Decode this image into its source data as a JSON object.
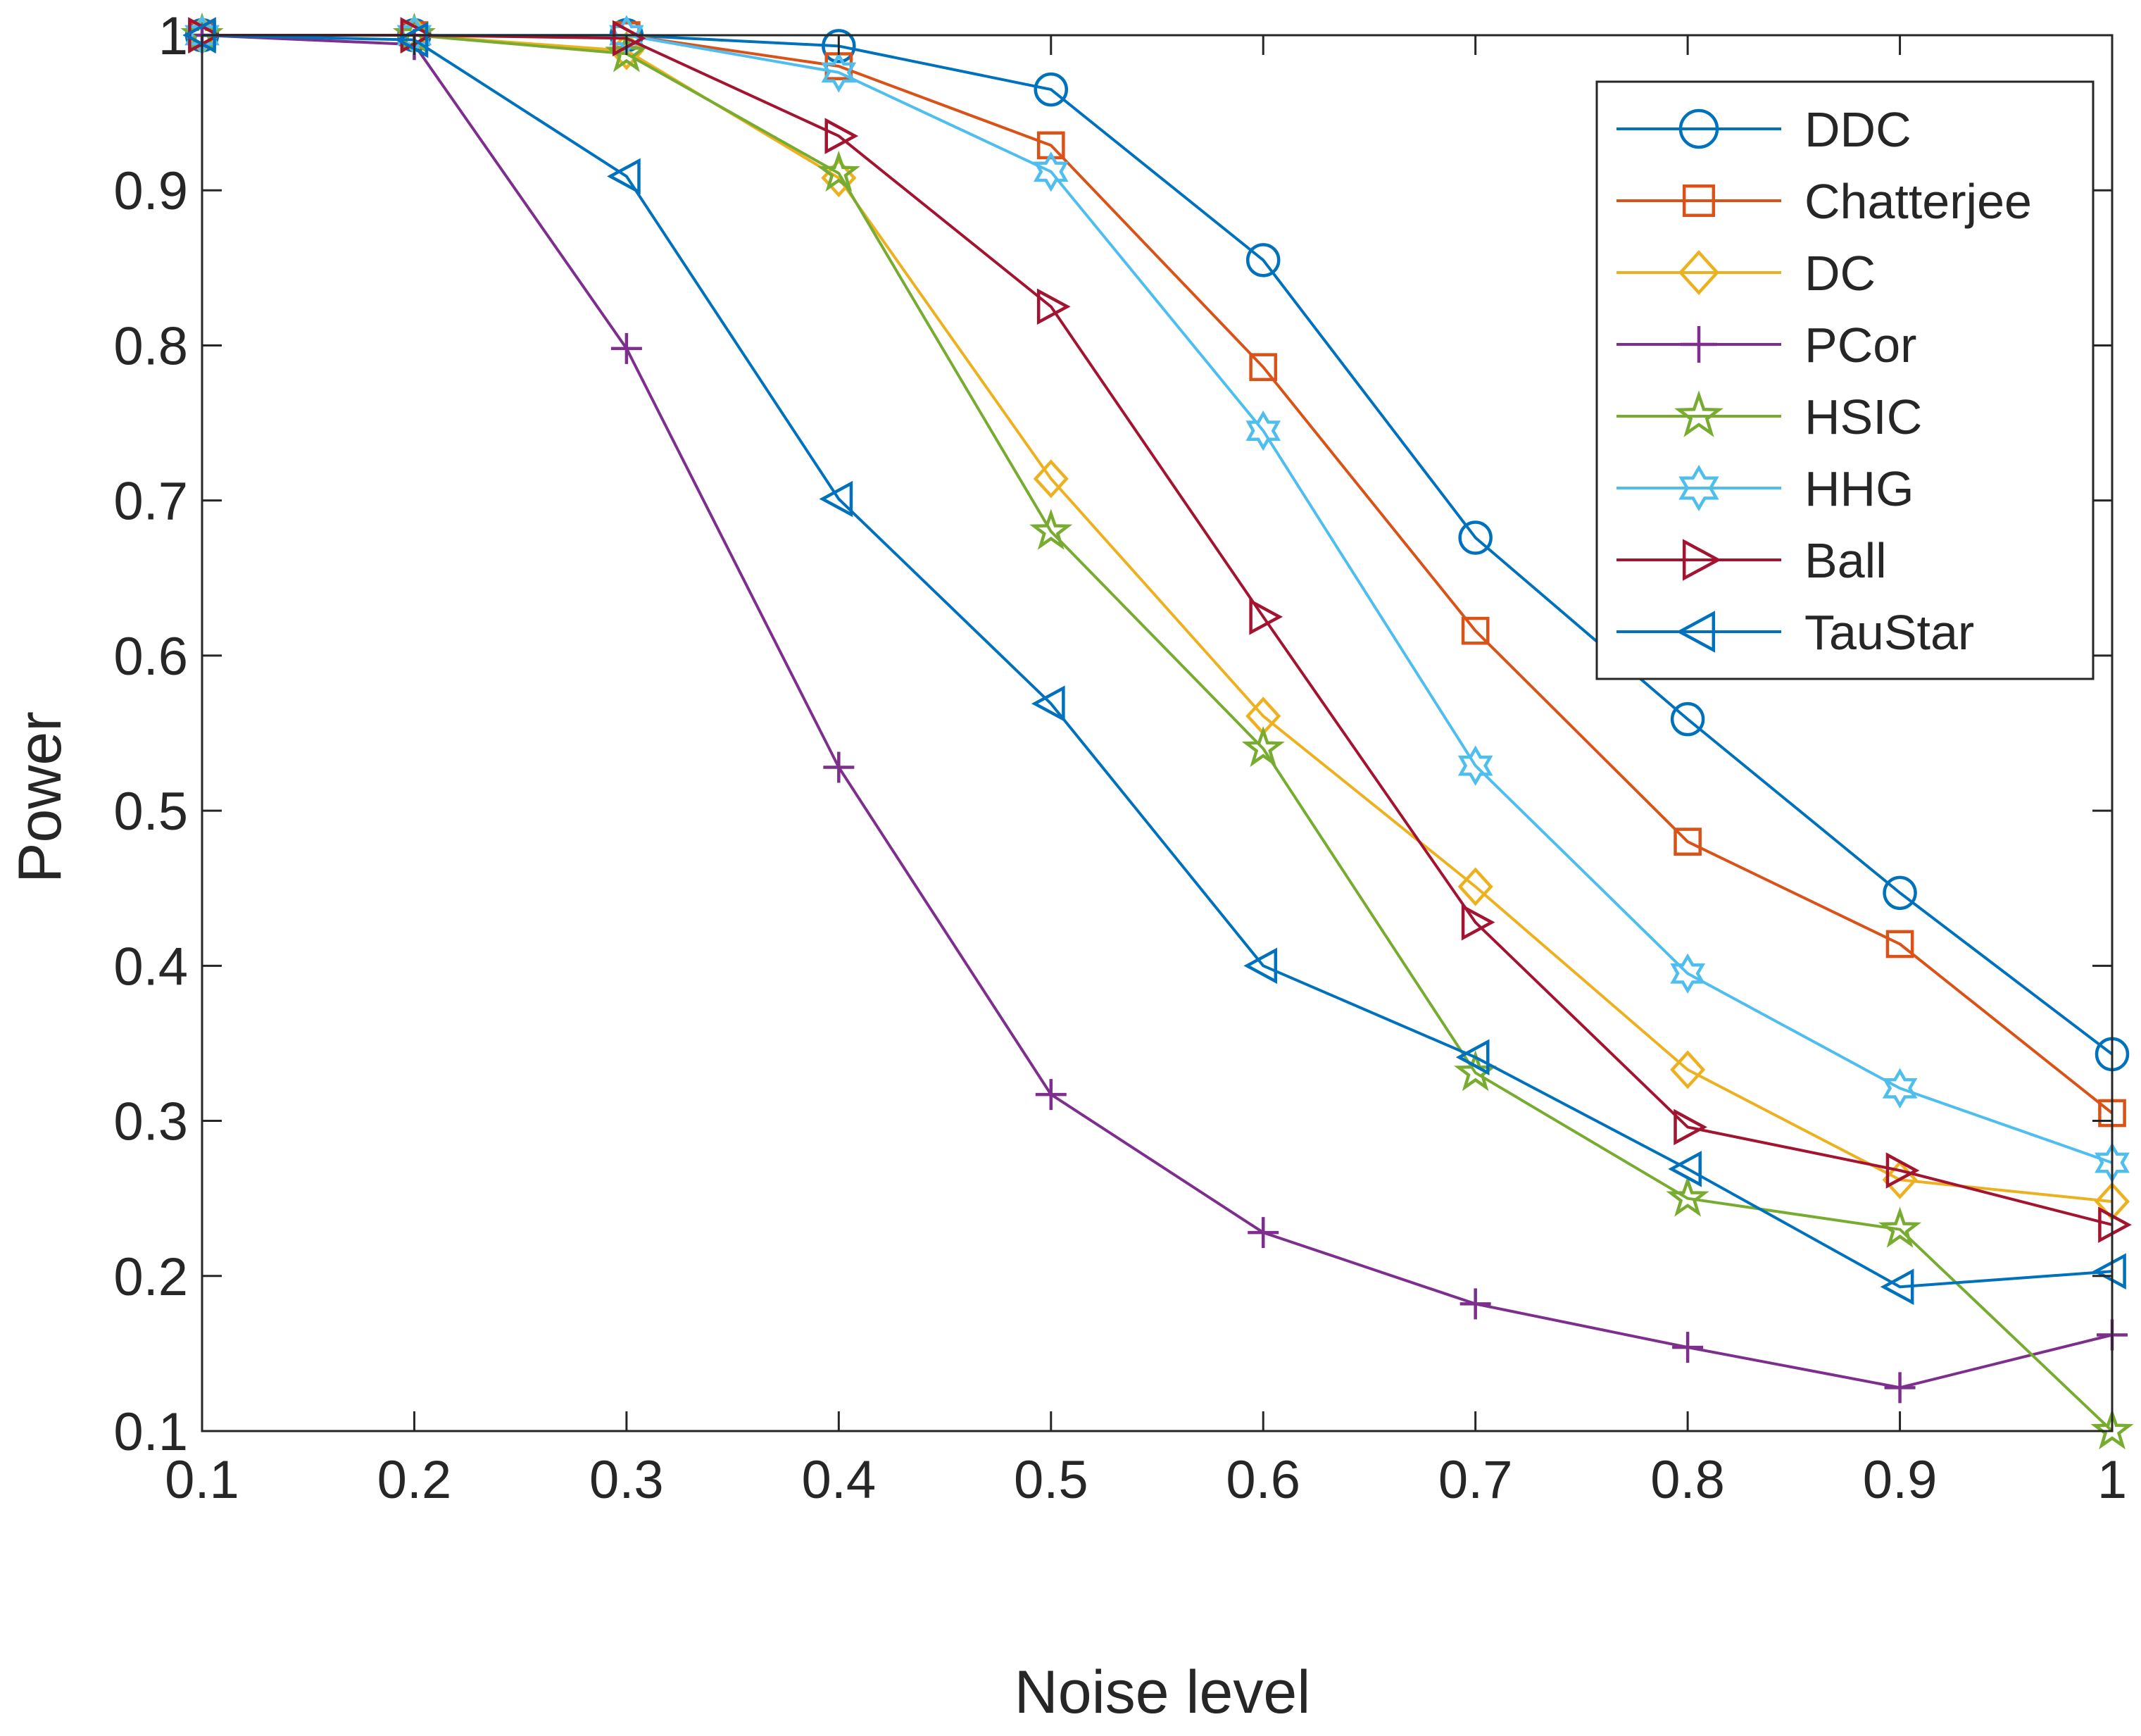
{
  "chart_data": {
    "type": "line",
    "title": "",
    "xlabel": "Noise level",
    "ylabel": "Power",
    "xlim": [
      0.1,
      1
    ],
    "ylim": [
      0.1,
      1
    ],
    "grid": false,
    "legend_position": "top-right",
    "x": [
      0.1,
      0.2,
      0.3,
      0.4,
      0.5,
      0.6,
      0.7,
      0.8,
      0.9,
      1.0
    ],
    "x_tick_labels": [
      "0.1",
      "0.2",
      "0.3",
      "0.4",
      "0.5",
      "0.6",
      "0.7",
      "0.8",
      "0.9",
      "1"
    ],
    "y_ticks": [
      0.1,
      0.2,
      0.3,
      0.4,
      0.5,
      0.6,
      0.7,
      0.8,
      0.9,
      1.0
    ],
    "y_tick_labels": [
      "0.1",
      "0.2",
      "0.3",
      "0.4",
      "0.5",
      "0.6",
      "0.7",
      "0.8",
      "0.9",
      "1"
    ],
    "series": [
      {
        "name": "DDC",
        "color": "#0072BD",
        "marker": "circle",
        "values": [
          1.0,
          1.0,
          1.0,
          0.993,
          0.965,
          0.855,
          0.676,
          0.559,
          0.447,
          0.343
        ]
      },
      {
        "name": "Chatterjee",
        "color": "#D95319",
        "marker": "square",
        "values": [
          1.0,
          1.0,
          1.0,
          0.98,
          0.929,
          0.786,
          0.616,
          0.48,
          0.414,
          0.305
        ]
      },
      {
        "name": "DC",
        "color": "#EDB120",
        "marker": "diamond",
        "values": [
          1.0,
          1.0,
          0.99,
          0.908,
          0.714,
          0.561,
          0.451,
          0.333,
          0.262,
          0.248
        ]
      },
      {
        "name": "PCor",
        "color": "#7E2F8E",
        "marker": "plus",
        "values": [
          1.0,
          0.994,
          0.798,
          0.528,
          0.317,
          0.228,
          0.182,
          0.154,
          0.128,
          0.162
        ]
      },
      {
        "name": "HSIC",
        "color": "#77AC30",
        "marker": "pentagram",
        "values": [
          1.0,
          1.0,
          0.988,
          0.911,
          0.68,
          0.54,
          0.331,
          0.25,
          0.23,
          0.1
        ]
      },
      {
        "name": "HHG",
        "color": "#4DBEEE",
        "marker": "hexagram",
        "values": [
          1.0,
          1.0,
          1.0,
          0.976,
          0.912,
          0.745,
          0.529,
          0.395,
          0.321,
          0.273
        ]
      },
      {
        "name": "Ball",
        "color": "#A2142F",
        "marker": "triangle-right",
        "values": [
          1.0,
          1.0,
          0.998,
          0.935,
          0.825,
          0.625,
          0.428,
          0.296,
          0.268,
          0.233
        ]
      },
      {
        "name": "TauStar",
        "color": "#0072BD",
        "marker": "triangle-left",
        "values": [
          1.0,
          0.997,
          0.909,
          0.701,
          0.569,
          0.4,
          0.341,
          0.269,
          0.193,
          0.203
        ]
      }
    ]
  }
}
